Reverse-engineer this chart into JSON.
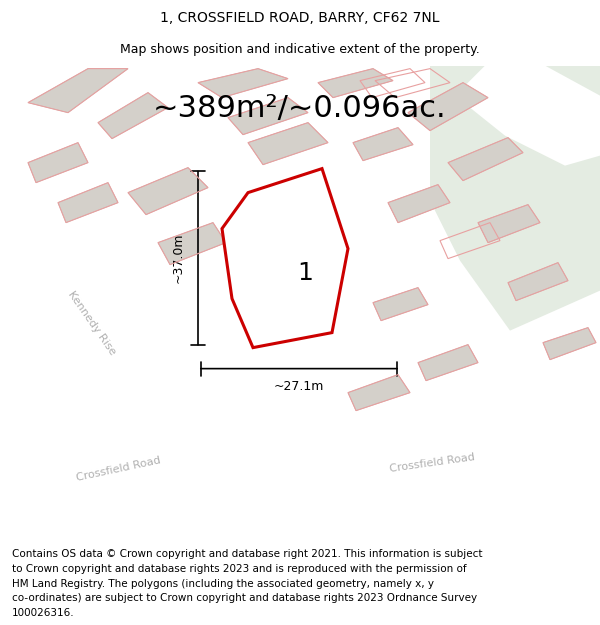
{
  "title": "1, CROSSFIELD ROAD, BARRY, CF62 7NL",
  "subtitle": "Map shows position and indicative extent of the property.",
  "area_label": "~389m²/~0.096ac.",
  "width_label": "~27.1m",
  "height_label": "~37.0m",
  "property_number": "1",
  "footer_lines": [
    "Contains OS data © Crown copyright and database right 2021. This information is subject",
    "to Crown copyright and database rights 2023 and is reproduced with the permission of",
    "HM Land Registry. The polygons (including the associated geometry, namely x, y",
    "co-ordinates) are subject to Crown copyright and database rights 2023 Ordnance Survey",
    "100026316."
  ],
  "map_bg": "#f2f0ed",
  "green_area": "#e4ece2",
  "road_color": "#ffffff",
  "building_color": "#d4d0ca",
  "building_edge": "#bcb8b2",
  "plot_fill": "#ffffff",
  "plot_edge": "#cc0000",
  "cadastre_edge": "#e8a0a0",
  "street_label_color": "#b0b0b0",
  "dim_color": "#000000",
  "area_label_fontsize": 22,
  "title_fontsize": 10,
  "subtitle_fontsize": 9,
  "footer_fontsize": 7.5,
  "street_fontsize": 8
}
